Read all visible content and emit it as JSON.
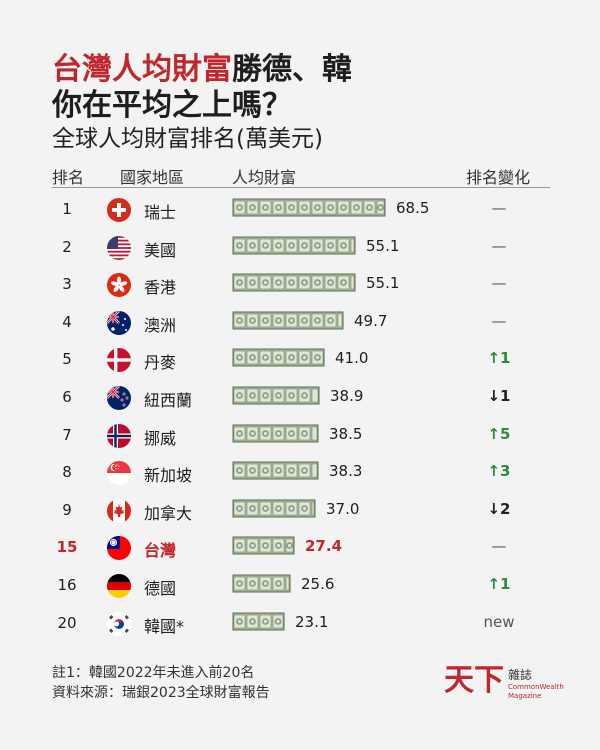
{
  "title": {
    "line1_red": "台灣人均財富",
    "line1_rest": "勝德、韓",
    "line2": "你在平均之上嗎？"
  },
  "subtitle": "全球人均財富排名(萬美元)",
  "headers": {
    "rank": "排名",
    "region": "國家地區",
    "wealth": "人均財富",
    "change": "排名變化"
  },
  "colors": {
    "accent_red": "#c0272d",
    "up_green": "#2e8b3b",
    "bill_green": "#a7b79a"
  },
  "chart_data": {
    "type": "bar",
    "title": "全球人均財富排名(萬美元)",
    "xlabel": "",
    "ylabel": "人均財富",
    "ylim": [
      0,
      70
    ],
    "categories": [
      "瑞士",
      "美國",
      "香港",
      "澳洲",
      "丹麥",
      "紐西蘭",
      "挪威",
      "新加坡",
      "加拿大",
      "台灣",
      "德國",
      "韓國*"
    ],
    "values": [
      68.5,
      55.1,
      55.1,
      49.7,
      41.0,
      38.9,
      38.5,
      38.3,
      37.0,
      27.4,
      25.6,
      23.1
    ]
  },
  "rows": [
    {
      "rank": "1",
      "name": "瑞士",
      "flag": "switzerland",
      "value": 68.5,
      "label": "68.5",
      "change": "—",
      "dir": "same",
      "highlight": false
    },
    {
      "rank": "2",
      "name": "美國",
      "flag": "usa",
      "value": 55.1,
      "label": "55.1",
      "change": "—",
      "dir": "same",
      "highlight": false
    },
    {
      "rank": "3",
      "name": "香港",
      "flag": "hongkong",
      "value": 55.1,
      "label": "55.1",
      "change": "—",
      "dir": "same",
      "highlight": false
    },
    {
      "rank": "4",
      "name": "澳洲",
      "flag": "australia",
      "value": 49.7,
      "label": "49.7",
      "change": "—",
      "dir": "same",
      "highlight": false
    },
    {
      "rank": "5",
      "name": "丹麥",
      "flag": "denmark",
      "value": 41.0,
      "label": "41.0",
      "change": "↑1",
      "dir": "up",
      "highlight": false
    },
    {
      "rank": "6",
      "name": "紐西蘭",
      "flag": "newzealand",
      "value": 38.9,
      "label": "38.9",
      "change": "↓1",
      "dir": "down",
      "highlight": false
    },
    {
      "rank": "7",
      "name": "挪威",
      "flag": "norway",
      "value": 38.5,
      "label": "38.5",
      "change": "↑5",
      "dir": "up",
      "highlight": false
    },
    {
      "rank": "8",
      "name": "新加坡",
      "flag": "singapore",
      "value": 38.3,
      "label": "38.3",
      "change": "↑3",
      "dir": "up",
      "highlight": false
    },
    {
      "rank": "9",
      "name": "加拿大",
      "flag": "canada",
      "value": 37.0,
      "label": "37.0",
      "change": "↓2",
      "dir": "down",
      "highlight": false
    },
    {
      "rank": "15",
      "name": "台灣",
      "flag": "taiwan",
      "value": 27.4,
      "label": "27.4",
      "change": "—",
      "dir": "same",
      "highlight": true
    },
    {
      "rank": "16",
      "name": "德國",
      "flag": "germany",
      "value": 25.6,
      "label": "25.6",
      "change": "↑1",
      "dir": "up",
      "highlight": false
    },
    {
      "rank": "20",
      "name": "韓國*",
      "flag": "korea",
      "value": 23.1,
      "label": "23.1",
      "change": "new",
      "dir": "same",
      "highlight": false
    }
  ],
  "footnotes": [
    "註1：韓國2022年未進入前20名",
    "資料來源：瑞銀2023全球財富報告"
  ],
  "logo": {
    "main": "天下",
    "small": "雜誌",
    "en1": "CommonWealth",
    "en2": "Magazine"
  }
}
